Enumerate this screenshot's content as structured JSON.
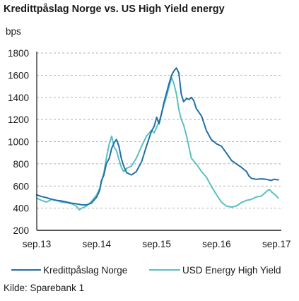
{
  "title": "Kredittpåslag Norge vs. US High Yield energy",
  "unit": "bps",
  "source": "Kilde: Sparebank 1",
  "chart_data": {
    "type": "line",
    "title": "Kredittpåslag Norge vs. US High Yield energy",
    "ylabel": "bps",
    "xlabel": "",
    "ylim": [
      200,
      1800
    ],
    "yticks": [
      200,
      400,
      600,
      800,
      1000,
      1200,
      1400,
      1600,
      1800
    ],
    "xlim": [
      2013.67,
      2017.75
    ],
    "xticks": [
      {
        "x": 2013.67,
        "label": "sep.13"
      },
      {
        "x": 2014.67,
        "label": "sep.14"
      },
      {
        "x": 2015.67,
        "label": "sep.15"
      },
      {
        "x": 2016.67,
        "label": "sep.16"
      },
      {
        "x": 2017.67,
        "label": "sep.17"
      }
    ],
    "grid": "horizontal-dashed",
    "legend_position": "bottom",
    "series": [
      {
        "name": "Kredittpåslag Norge",
        "color": "#1f6fa8",
        "points": [
          [
            2013.67,
            520
          ],
          [
            2013.75,
            505
          ],
          [
            2013.83,
            495
          ],
          [
            2013.92,
            480
          ],
          [
            2014.0,
            470
          ],
          [
            2014.08,
            465
          ],
          [
            2014.17,
            455
          ],
          [
            2014.25,
            445
          ],
          [
            2014.33,
            440
          ],
          [
            2014.42,
            430
          ],
          [
            2014.5,
            430
          ],
          [
            2014.58,
            445
          ],
          [
            2014.67,
            500
          ],
          [
            2014.72,
            560
          ],
          [
            2014.75,
            650
          ],
          [
            2014.79,
            700
          ],
          [
            2014.83,
            800
          ],
          [
            2014.88,
            850
          ],
          [
            2014.92,
            940
          ],
          [
            2014.96,
            990
          ],
          [
            2015.0,
            1020
          ],
          [
            2015.04,
            960
          ],
          [
            2015.08,
            850
          ],
          [
            2015.12,
            780
          ],
          [
            2015.17,
            720
          ],
          [
            2015.25,
            700
          ],
          [
            2015.33,
            730
          ],
          [
            2015.42,
            820
          ],
          [
            2015.5,
            960
          ],
          [
            2015.58,
            1090
          ],
          [
            2015.63,
            1140
          ],
          [
            2015.67,
            1220
          ],
          [
            2015.71,
            1160
          ],
          [
            2015.75,
            1250
          ],
          [
            2015.79,
            1350
          ],
          [
            2015.83,
            1430
          ],
          [
            2015.88,
            1530
          ],
          [
            2015.92,
            1600
          ],
          [
            2015.96,
            1640
          ],
          [
            2016.0,
            1665
          ],
          [
            2016.04,
            1620
          ],
          [
            2016.08,
            1430
          ],
          [
            2016.12,
            1360
          ],
          [
            2016.17,
            1390
          ],
          [
            2016.21,
            1380
          ],
          [
            2016.25,
            1400
          ],
          [
            2016.29,
            1370
          ],
          [
            2016.33,
            1300
          ],
          [
            2016.42,
            1230
          ],
          [
            2016.5,
            1100
          ],
          [
            2016.58,
            1020
          ],
          [
            2016.67,
            980
          ],
          [
            2016.75,
            960
          ],
          [
            2016.83,
            900
          ],
          [
            2016.92,
            830
          ],
          [
            2017.0,
            800
          ],
          [
            2017.08,
            770
          ],
          [
            2017.17,
            730
          ],
          [
            2017.21,
            690
          ],
          [
            2017.25,
            670
          ],
          [
            2017.33,
            660
          ],
          [
            2017.42,
            665
          ],
          [
            2017.5,
            660
          ],
          [
            2017.58,
            650
          ],
          [
            2017.63,
            660
          ],
          [
            2017.7,
            655
          ]
        ]
      },
      {
        "name": "USD Energy High Yield",
        "color": "#5bbfc2",
        "points": [
          [
            2013.67,
            490
          ],
          [
            2013.75,
            470
          ],
          [
            2013.83,
            455
          ],
          [
            2013.92,
            480
          ],
          [
            2014.0,
            470
          ],
          [
            2014.08,
            455
          ],
          [
            2014.17,
            450
          ],
          [
            2014.25,
            440
          ],
          [
            2014.33,
            420
          ],
          [
            2014.38,
            385
          ],
          [
            2014.42,
            400
          ],
          [
            2014.5,
            420
          ],
          [
            2014.58,
            460
          ],
          [
            2014.67,
            520
          ],
          [
            2014.72,
            580
          ],
          [
            2014.75,
            640
          ],
          [
            2014.79,
            720
          ],
          [
            2014.83,
            850
          ],
          [
            2014.88,
            980
          ],
          [
            2014.92,
            1050
          ],
          [
            2014.96,
            950
          ],
          [
            2015.0,
            920
          ],
          [
            2015.04,
            840
          ],
          [
            2015.08,
            770
          ],
          [
            2015.12,
            730
          ],
          [
            2015.17,
            760
          ],
          [
            2015.25,
            780
          ],
          [
            2015.33,
            850
          ],
          [
            2015.42,
            960
          ],
          [
            2015.5,
            1050
          ],
          [
            2015.58,
            1100
          ],
          [
            2015.63,
            1080
          ],
          [
            2015.67,
            1130
          ],
          [
            2015.71,
            1180
          ],
          [
            2015.75,
            1250
          ],
          [
            2015.79,
            1330
          ],
          [
            2015.83,
            1400
          ],
          [
            2015.88,
            1500
          ],
          [
            2015.92,
            1580
          ],
          [
            2015.96,
            1520
          ],
          [
            2016.0,
            1430
          ],
          [
            2016.04,
            1290
          ],
          [
            2016.08,
            1200
          ],
          [
            2016.12,
            1150
          ],
          [
            2016.17,
            1050
          ],
          [
            2016.21,
            950
          ],
          [
            2016.25,
            850
          ],
          [
            2016.33,
            800
          ],
          [
            2016.42,
            730
          ],
          [
            2016.5,
            680
          ],
          [
            2016.58,
            600
          ],
          [
            2016.67,
            520
          ],
          [
            2016.75,
            455
          ],
          [
            2016.83,
            420
          ],
          [
            2016.92,
            410
          ],
          [
            2017.0,
            420
          ],
          [
            2017.08,
            450
          ],
          [
            2017.17,
            470
          ],
          [
            2017.25,
            480
          ],
          [
            2017.33,
            500
          ],
          [
            2017.42,
            510
          ],
          [
            2017.5,
            550
          ],
          [
            2017.55,
            570
          ],
          [
            2017.6,
            540
          ],
          [
            2017.65,
            520
          ],
          [
            2017.7,
            490
          ]
        ]
      }
    ]
  },
  "colors": {
    "axis": "#1a1a1a",
    "grid": "#9a9a9a"
  }
}
